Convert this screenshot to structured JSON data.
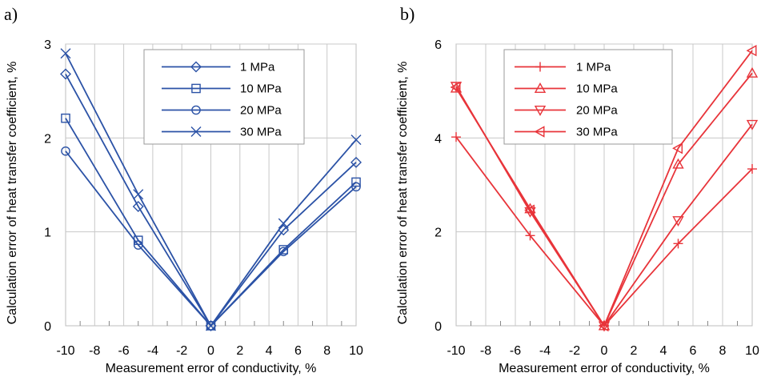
{
  "chart_data": [
    {
      "type": "line",
      "panel_label": "a)",
      "xlabel": "Measurement error of conductivity, %",
      "ylabel": "Calculation error of heat transfer coefficient, %",
      "xlim": [
        -10,
        10
      ],
      "ylim": [
        0,
        3
      ],
      "xticks": [
        -10,
        -8,
        -6,
        -4,
        -2,
        0,
        2,
        4,
        6,
        8,
        10
      ],
      "yticks": [
        0,
        1,
        2,
        3
      ],
      "grid": true,
      "legend_position": "top-right",
      "color": "#2b52a6",
      "x": [
        -10,
        -5,
        0,
        5,
        10
      ],
      "series": [
        {
          "name": "1 MPa",
          "marker": "diamond",
          "values": [
            2.68,
            1.27,
            0,
            1.02,
            1.74
          ]
        },
        {
          "name": "10 MPa",
          "marker": "square",
          "values": [
            2.21,
            0.91,
            0,
            0.81,
            1.53
          ]
        },
        {
          "name": "20 MPa",
          "marker": "circle",
          "values": [
            1.86,
            0.86,
            0,
            0.79,
            1.48
          ]
        },
        {
          "name": "30 MPa",
          "marker": "x",
          "values": [
            2.9,
            1.4,
            0,
            1.09,
            1.98
          ]
        }
      ]
    },
    {
      "type": "line",
      "panel_label": "b)",
      "xlabel": "Measurement error of conductivity, %",
      "ylabel": "Calculation error of heat transfer coefficient, %",
      "xlim": [
        -10,
        10
      ],
      "ylim": [
        0,
        6
      ],
      "xticks": [
        -10,
        -8,
        -6,
        -4,
        -2,
        0,
        2,
        4,
        6,
        8,
        10
      ],
      "yticks": [
        0,
        2,
        4,
        6
      ],
      "grid": true,
      "legend_position": "top-left",
      "color": "#e8343a",
      "x": [
        -10,
        -5,
        0,
        5,
        10
      ],
      "series": [
        {
          "name": "1 MPa",
          "marker": "plus",
          "values": [
            4.02,
            1.92,
            0,
            1.75,
            3.34
          ]
        },
        {
          "name": "10 MPa",
          "marker": "triangle-up",
          "values": [
            5.06,
            2.49,
            0,
            3.44,
            5.38
          ]
        },
        {
          "name": "20 MPa",
          "marker": "triangle-down",
          "values": [
            5.1,
            2.43,
            0,
            2.24,
            4.29
          ]
        },
        {
          "name": "30 MPa",
          "marker": "triangle-left",
          "values": [
            5.08,
            2.46,
            0,
            3.78,
            5.86
          ]
        }
      ]
    }
  ]
}
